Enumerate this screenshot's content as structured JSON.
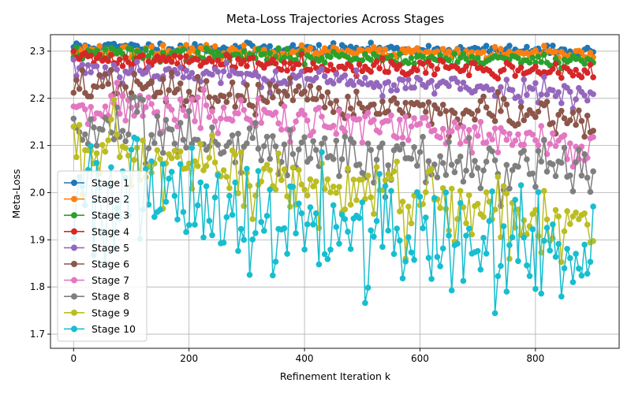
{
  "chart_data": {
    "type": "line",
    "title": "Meta-Loss Trajectories Across Stages",
    "xlabel": "Refinement Iteration k",
    "ylabel": "Meta-Loss",
    "xlim": [
      -40,
      945
    ],
    "ylim": [
      1.67,
      2.335
    ],
    "xticks": [
      0,
      200,
      400,
      600,
      800
    ],
    "yticks": [
      1.7,
      1.8,
      1.9,
      2.0,
      2.1,
      2.2,
      2.3
    ],
    "ytick_labels": [
      "1.7",
      "1.8",
      "1.9",
      "2.0",
      "2.1",
      "2.2",
      "2.3"
    ],
    "grid": true,
    "legend_position": "lower-left",
    "marker": "circle",
    "iterations": {
      "start": 0,
      "end": 900,
      "step": 5
    },
    "series": [
      {
        "name": "Stage 1",
        "color": "#1f77b4",
        "start": 2.31,
        "end": 2.3,
        "noise": 0.005,
        "oscillation": 0.0,
        "seed": 11
      },
      {
        "name": "Stage 2",
        "color": "#ff7f0e",
        "start": 2.302,
        "end": 2.292,
        "noise": 0.006,
        "oscillation": 0.0,
        "seed": 23
      },
      {
        "name": "Stage 3",
        "color": "#2ca02c",
        "start": 2.295,
        "end": 2.28,
        "noise": 0.007,
        "oscillation": 0.0,
        "seed": 37
      },
      {
        "name": "Stage 4",
        "color": "#d62728",
        "start": 2.285,
        "end": 2.255,
        "noise": 0.009,
        "oscillation": 0.0,
        "seed": 41
      },
      {
        "name": "Stage 5",
        "color": "#9467bd",
        "start": 2.265,
        "end": 2.21,
        "noise": 0.012,
        "oscillation": 0.0,
        "seed": 53
      },
      {
        "name": "Stage 6",
        "color": "#8c564b",
        "start": 2.23,
        "end": 2.15,
        "noise": 0.018,
        "oscillation": 0.0,
        "seed": 67
      },
      {
        "name": "Stage 7",
        "color": "#e377c2",
        "start": 2.19,
        "end": 2.1,
        "noise": 0.022,
        "oscillation": 0.0,
        "seed": 71
      },
      {
        "name": "Stage 8",
        "color": "#7f7f7f",
        "start": 2.14,
        "end": 2.03,
        "noise": 0.03,
        "oscillation": 0.0,
        "seed": 83
      },
      {
        "name": "Stage 9",
        "color": "#bcbd22",
        "start": 2.08,
        "end": 1.93,
        "noise": 0.042,
        "oscillation": 0.0,
        "seed": 97
      },
      {
        "name": "Stage 10",
        "color": "#17becf",
        "start": 2.0,
        "end": 1.86,
        "noise": 0.065,
        "oscillation": 0.0,
        "seed": 101
      }
    ]
  }
}
